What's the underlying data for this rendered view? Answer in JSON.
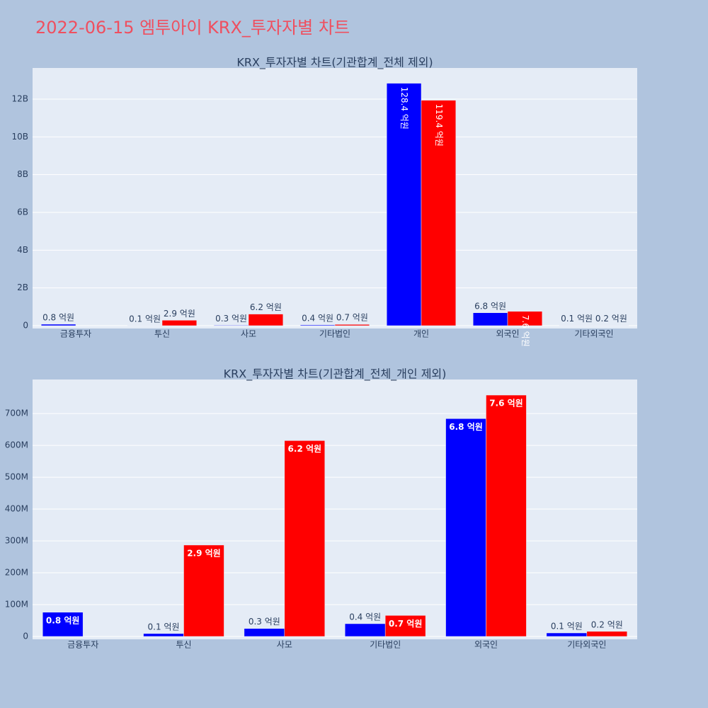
{
  "title": "2022-06-15 엠투아이 KRX_투자자별 차트",
  "chart_data": [
    {
      "type": "bar",
      "title": "KRX_투자자별 차트(기관합계_전체 제외)",
      "categories": [
        "금융투자",
        "투신",
        "사모",
        "기타법인",
        "개인",
        "외국인",
        "기타외국인"
      ],
      "series": [
        {
          "color": "#0000ff",
          "values": [
            76000000,
            9000000,
            25000000,
            40000000,
            12840000000,
            684000000,
            11000000
          ],
          "value_labels": [
            "0.8 억원",
            "0.1 억원",
            "0.3 억원",
            "0.4 억원",
            "128.4 억원",
            "6.8 억원",
            "0.1 억원"
          ]
        },
        {
          "color": "#ff0000",
          "values": [
            null,
            287000000,
            615000000,
            66000000,
            11940000000,
            758000000,
            16000000
          ],
          "value_labels": [
            null,
            "2.9 억원",
            "6.2 억원",
            "0.7 억원",
            "119.4 억원",
            "7.6 억원",
            "0.2 억원"
          ]
        }
      ],
      "ylim": [
        -150000000,
        13650000000
      ],
      "yticks": [
        0,
        {
          "value": 2000000000,
          "label": "2B"
        },
        {
          "value": 4000000000,
          "label": "4B"
        },
        {
          "value": 6000000000,
          "label": "6B"
        },
        {
          "value": 8000000000,
          "label": "8B"
        },
        {
          "value": 10000000000,
          "label": "10B"
        },
        {
          "value": 12000000000,
          "label": "12B"
        }
      ],
      "grid": true
    },
    {
      "type": "bar",
      "title": "KRX_투자자별 차트(기관합계_전체_개인 제외)",
      "categories": [
        "금융투자",
        "투신",
        "사모",
        "기타법인",
        "외국인",
        "기타외국인"
      ],
      "series": [
        {
          "color": "#0000ff",
          "values": [
            76000000,
            9000000,
            25000000,
            40000000,
            684000000,
            11000000
          ],
          "value_labels": [
            "0.8 억원",
            "0.1 억원",
            "0.3 억원",
            "0.4 억원",
            "6.8 억원",
            "0.1 억원"
          ]
        },
        {
          "color": "#ff0000",
          "values": [
            null,
            287000000,
            615000000,
            66000000,
            758000000,
            16000000
          ],
          "value_labels": [
            null,
            "2.9 억원",
            "6.2 억원",
            "0.7 억원",
            "7.6 억원",
            "0.2 억원"
          ]
        }
      ],
      "ylim": [
        -9000000,
        807000000
      ],
      "yticks": [
        0,
        {
          "value": 100000000,
          "label": "100M"
        },
        {
          "value": 200000000,
          "label": "200M"
        },
        {
          "value": 300000000,
          "label": "300M"
        },
        {
          "value": 400000000,
          "label": "400M"
        },
        {
          "value": 500000000,
          "label": "500M"
        },
        {
          "value": 600000000,
          "label": "600M"
        },
        {
          "value": 700000000,
          "label": "700M"
        }
      ],
      "grid": true
    }
  ]
}
